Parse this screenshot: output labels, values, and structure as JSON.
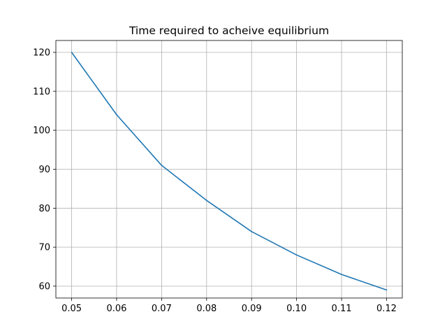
{
  "chart_data": {
    "type": "line",
    "title": "Time required to acheive equilibrium",
    "xlabel": "",
    "ylabel": "",
    "x": [
      0.05,
      0.06,
      0.07,
      0.08,
      0.09,
      0.1,
      0.11,
      0.12
    ],
    "series": [
      {
        "values": [
          120,
          104,
          91,
          82,
          74,
          68,
          63,
          59
        ],
        "color": "#1f77b4"
      }
    ],
    "x_ticks": [
      "0.05",
      "0.06",
      "0.07",
      "0.08",
      "0.09",
      "0.10",
      "0.11",
      "0.12"
    ],
    "y_ticks": [
      "60",
      "70",
      "80",
      "90",
      "100",
      "110",
      "120"
    ],
    "xlim": [
      0.0465,
      0.1235
    ],
    "ylim": [
      56.95,
      123.05
    ],
    "grid": true,
    "legend": "none"
  }
}
